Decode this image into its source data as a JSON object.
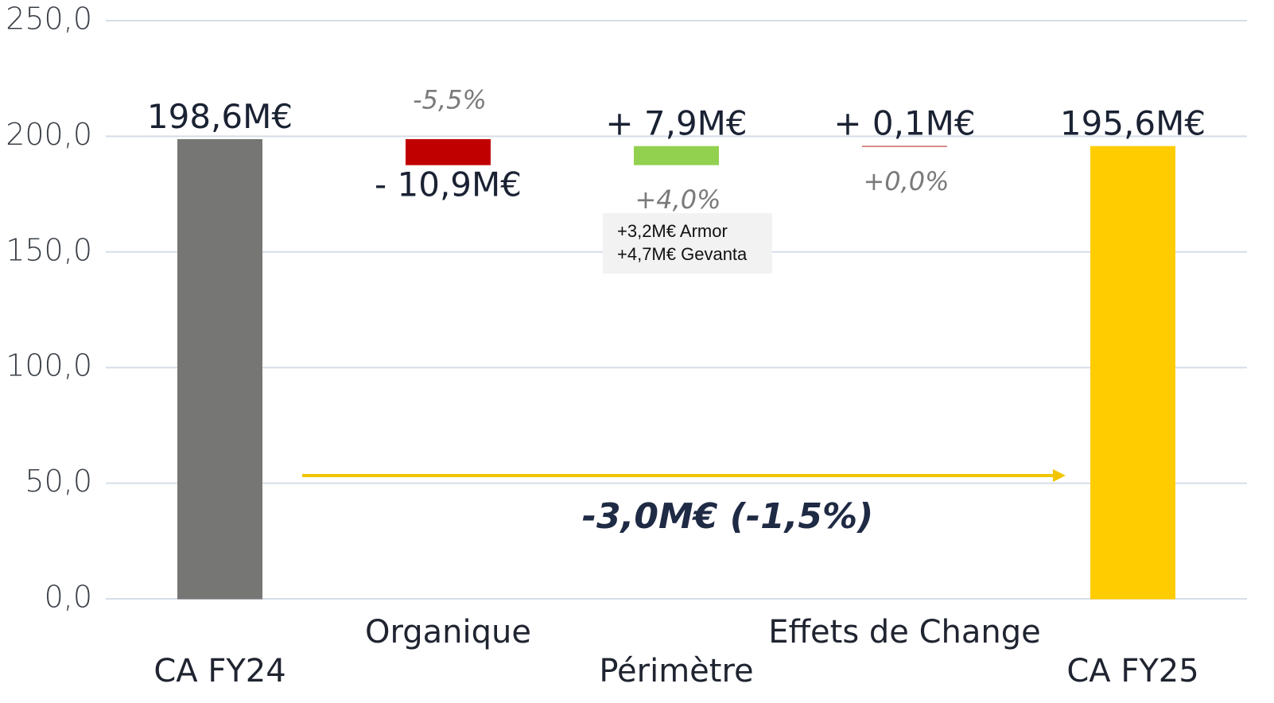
{
  "chart_data": {
    "type": "waterfall",
    "categories": [
      "CA FY24",
      "Organique",
      "Périmètre",
      "Effets de Change",
      "CA FY25"
    ],
    "measure": [
      "absolute",
      "relative",
      "relative",
      "relative",
      "total"
    ],
    "values": [
      198.6,
      -10.9,
      7.9,
      0.1,
      195.6
    ],
    "value_labels": [
      "198,6M€",
      "- 10,9M€",
      "+ 7,9M€",
      "+ 0,1M€",
      "195,6M€"
    ],
    "percent_labels": [
      null,
      "-5,5%",
      "+4,0%",
      "+0,0%",
      null
    ],
    "colors": [
      "#767775",
      "#c00000",
      "#92d050",
      "#c0504d",
      "#ffcc00"
    ],
    "ylim": [
      0,
      250
    ],
    "yticks": [
      {
        "value": 0,
        "label": "0,0"
      },
      {
        "value": 50,
        "label": "50,0"
      },
      {
        "value": 100,
        "label": "100,0"
      },
      {
        "value": 150,
        "label": "150,0"
      },
      {
        "value": 200,
        "label": "200,0"
      },
      {
        "value": 250,
        "label": "250,0"
      }
    ],
    "grid": true,
    "note": [
      "+3,2M€ Armor",
      "+4,7M€ Gevanta"
    ],
    "change_annotation": "-3,0M€ (-1,5%)"
  }
}
